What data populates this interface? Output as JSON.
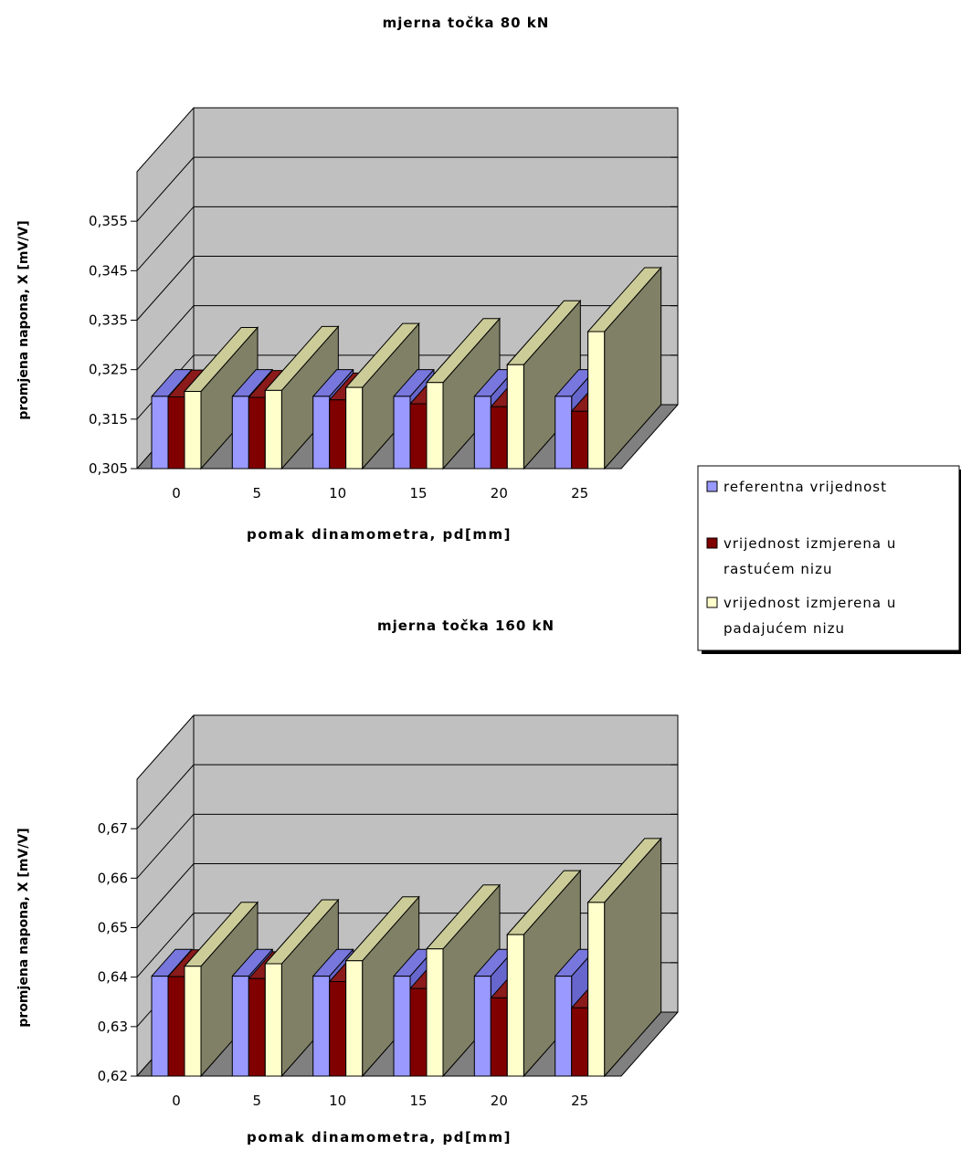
{
  "legend": {
    "placement": "right",
    "items": [
      {
        "lines": [
          "referentna vrijednost"
        ],
        "color": "#9999ff"
      },
      {
        "lines": [
          "vrijednost izmjerena u",
          "rastućem nizu"
        ],
        "color": "#800000"
      },
      {
        "lines": [
          "vrijednost izmjerena u",
          "padajućem nizu"
        ],
        "color": "#ffffcc"
      }
    ]
  },
  "colors": {
    "wall": "#c0c0c0",
    "floor": "#808080",
    "bar_side_dark": "#808066"
  },
  "chart_data": [
    {
      "type": "bar",
      "title": "mjerna točka 80 kN",
      "xlabel": "pomak dinamometra, pd[mm]",
      "ylabel": "promjena napona, X [mV/V]",
      "ylim": [
        0.305,
        0.365
      ],
      "yticks": [
        "0,305",
        "0,315",
        "0,325",
        "0,335",
        "0,345",
        "0,355"
      ],
      "categories": [
        "0",
        "5",
        "10",
        "15",
        "20",
        "25"
      ],
      "grid": true,
      "series": [
        {
          "name": "referentna vrijednost",
          "values": [
            0.3196,
            0.3196,
            0.3196,
            0.3196,
            0.3196,
            0.3196
          ]
        },
        {
          "name": "vrijednost izmjerena u rastućem nizu",
          "values": [
            0.3195,
            0.3194,
            0.3189,
            0.3181,
            0.3175,
            0.3166
          ]
        },
        {
          "name": "vrijednost izmjerena u padajućem nizu",
          "values": [
            0.3206,
            0.3208,
            0.3214,
            0.3224,
            0.326,
            0.3327
          ]
        }
      ]
    },
    {
      "type": "bar",
      "title": "mjerna točka 160 kN",
      "xlabel": "pomak dinamometra, pd[mm]",
      "ylabel": "promjena napona, X [mV/V]",
      "ylim": [
        0.62,
        0.68
      ],
      "yticks": [
        "0,62",
        "0,63",
        "0,64",
        "0,65",
        "0,66",
        "0,67"
      ],
      "categories": [
        "0",
        "5",
        "10",
        "15",
        "20",
        "25"
      ],
      "grid": true,
      "series": [
        {
          "name": "referentna vrijednost",
          "values": [
            0.6402,
            0.6402,
            0.6402,
            0.6402,
            0.6402,
            0.6402
          ]
        },
        {
          "name": "vrijednost izmjerena u rastućem nizu",
          "values": [
            0.6401,
            0.6397,
            0.6391,
            0.6377,
            0.6358,
            0.6338
          ]
        },
        {
          "name": "vrijednost izmjerena u padajućem nizu",
          "values": [
            0.6422,
            0.6427,
            0.6433,
            0.6457,
            0.6486,
            0.6551
          ]
        }
      ]
    }
  ]
}
